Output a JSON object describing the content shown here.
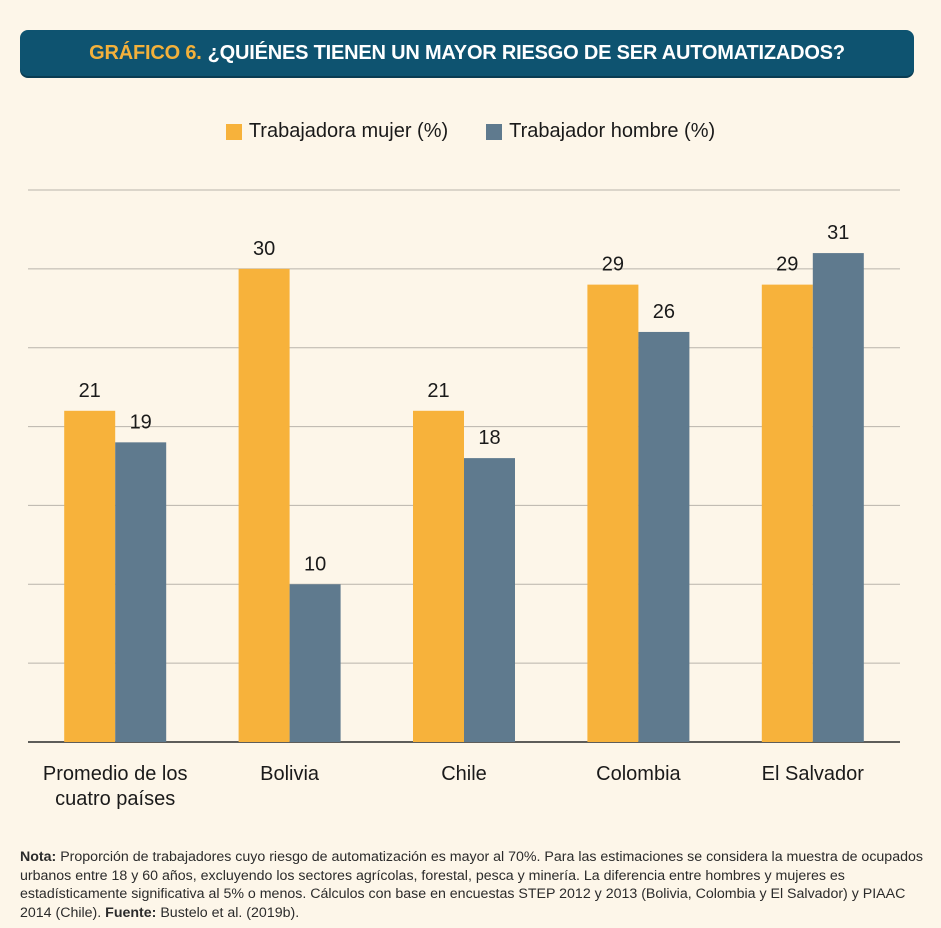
{
  "header": {
    "prefix": "GRÁFICO 6.",
    "title": "¿QUIÉNES TIENEN UN MAYOR RIESGO DE SER AUTOMATIZADOS?"
  },
  "legend": {
    "items": [
      {
        "label": "Trabajadora mujer (%)",
        "color": "#f7b23b"
      },
      {
        "label": "Trabajador hombre (%)",
        "color": "#5f7a8e"
      }
    ]
  },
  "chart_data": {
    "type": "bar",
    "categories": [
      "Promedio de los cuatro países",
      "Bolivia",
      "Chile",
      "Colombia",
      "El Salvador"
    ],
    "series": [
      {
        "name": "Trabajadora mujer (%)",
        "values": [
          21,
          30,
          21,
          29,
          29
        ],
        "color": "#f7b23b"
      },
      {
        "name": "Trabajador hombre (%)",
        "values": [
          19,
          10,
          18,
          26,
          31
        ],
        "color": "#5f7a8e"
      }
    ],
    "title": "",
    "xlabel": "",
    "ylabel": "",
    "ylim": [
      0,
      35
    ],
    "grid": true,
    "legend_position": "top"
  },
  "note": {
    "note_label": "Nota:",
    "note_text": " Proporción de trabajadores cuyo riesgo de automatización es mayor al 70%. Para las estimaciones se considera la muestra de ocupados urbanos entre 18 y 60 años, excluyendo los sectores agrícolas, forestal, pesca y minería. La diferencia entre hombres y mujeres es estadísticamente significativa al 5% o menos. Cálculos con base en encuestas STEP 2012 y 2013 (Bolivia, Colombia y El Salvador) y PIAAC 2014 (Chile). ",
    "source_label": "Fuente:",
    "source_text": " Bustelo et al. (2019b)."
  }
}
